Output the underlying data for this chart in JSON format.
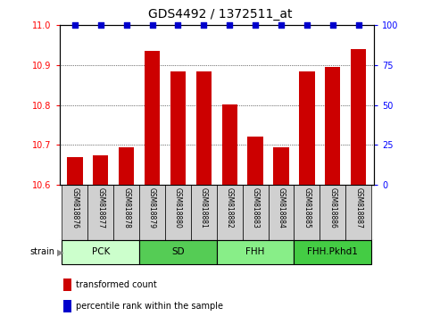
{
  "title": "GDS4492 / 1372511_at",
  "samples": [
    "GSM818876",
    "GSM818877",
    "GSM818878",
    "GSM818879",
    "GSM818880",
    "GSM818881",
    "GSM818882",
    "GSM818883",
    "GSM818884",
    "GSM818885",
    "GSM818886",
    "GSM818887"
  ],
  "bar_values": [
    10.67,
    10.675,
    10.695,
    10.935,
    10.885,
    10.885,
    10.802,
    10.72,
    10.695,
    10.885,
    10.895,
    10.94
  ],
  "percentile_values": [
    100,
    100,
    100,
    100,
    100,
    100,
    100,
    100,
    100,
    100,
    100,
    100
  ],
  "bar_color": "#cc0000",
  "dot_color": "#0000cc",
  "ylim_left": [
    10.6,
    11.0
  ],
  "ylim_right": [
    0,
    100
  ],
  "yticks_left": [
    10.6,
    10.7,
    10.8,
    10.9,
    11.0
  ],
  "yticks_right": [
    0,
    25,
    50,
    75,
    100
  ],
  "grid_lines": [
    10.7,
    10.8,
    10.9
  ],
  "groups": [
    {
      "label": "PCK",
      "start": 0,
      "end": 3,
      "color": "#ccffcc"
    },
    {
      "label": "SD",
      "start": 3,
      "end": 6,
      "color": "#55cc55"
    },
    {
      "label": "FHH",
      "start": 6,
      "end": 9,
      "color": "#88ee88"
    },
    {
      "label": "FHH.Pkhd1",
      "start": 9,
      "end": 12,
      "color": "#44cc44"
    }
  ],
  "strain_label": "strain",
  "legend": [
    {
      "label": "transformed count",
      "color": "#cc0000"
    },
    {
      "label": "percentile rank within the sample",
      "color": "#0000cc"
    }
  ],
  "xtick_bg": "#d0d0d0",
  "bar_width": 0.6
}
